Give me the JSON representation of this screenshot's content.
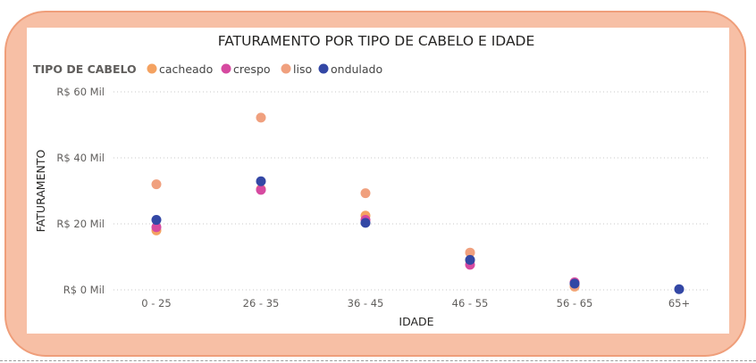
{
  "chart_data": {
    "type": "scatter",
    "title": "FATURAMENTO POR TIPO DE CABELO E IDADE",
    "xlabel": "IDADE",
    "ylabel": "FATURAMENTO",
    "categories": [
      "0 - 25",
      "26 - 35",
      "36 - 45",
      "46 - 55",
      "56 - 65",
      "65+"
    ],
    "ylim": [
      0,
      60
    ],
    "yticks": [
      {
        "value": 0,
        "label": "R$ 0 Mil"
      },
      {
        "value": 20,
        "label": "R$ 20 Mil"
      },
      {
        "value": 40,
        "label": "R$ 40 Mil"
      },
      {
        "value": 60,
        "label": "R$ 60 Mil"
      }
    ],
    "grid": true,
    "legend_title": "TIPO DE CABELO",
    "legend_position": "top-left",
    "series": [
      {
        "name": "cacheado",
        "color": "#f4a261",
        "values": [
          18,
          30.5,
          22.5,
          9,
          1,
          null
        ]
      },
      {
        "name": "crespo",
        "color": "#d64aa0",
        "values": [
          19,
          30.3,
          21.2,
          7.6,
          2.3,
          null
        ]
      },
      {
        "name": "liso",
        "color": "#f0a07e",
        "values": [
          32,
          52.2,
          29.3,
          11.3,
          1.2,
          null
        ]
      },
      {
        "name": "ondulado",
        "color": "#3347a5",
        "values": [
          21.2,
          32.9,
          20.3,
          9.1,
          1.9,
          0.2
        ]
      }
    ]
  }
}
